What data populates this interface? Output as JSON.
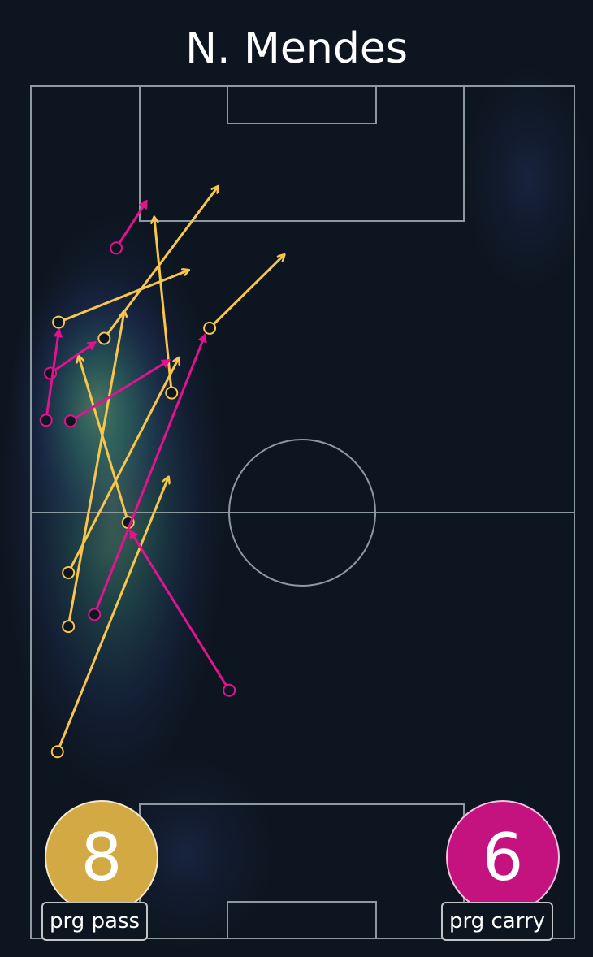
{
  "title": "N. Mendes",
  "colors": {
    "background": "#0d1620",
    "pitch_lines": "#8a9aa0",
    "pass": "#f7c64a",
    "carry": "#e3128f",
    "pass_badge": "#d3a944",
    "carry_badge": "#c4127f"
  },
  "badges": {
    "pass": {
      "value": "8",
      "label": "prg pass"
    },
    "carry": {
      "value": "6",
      "label": "prg carry"
    }
  },
  "chart_data": {
    "type": "scatter",
    "title": "N. Mendes",
    "description_units": "pitch coordinates 0-100 across width (left to right) and 0-100 along length (top goal to bottom goal)",
    "xlim": [
      0,
      100
    ],
    "ylim": [
      0,
      100
    ],
    "grid": false,
    "series": [
      {
        "name": "prg pass",
        "color": "#f7c64a",
        "arrows": [
          {
            "start": [
              5.1,
              27.7
            ],
            "end": [
              29.0,
              21.6
            ]
          },
          {
            "start": [
              13.5,
              29.6
            ],
            "end": [
              34.4,
              11.8
            ]
          },
          {
            "start": [
              32.9,
              28.4
            ],
            "end": [
              46.6,
              19.8
            ]
          },
          {
            "start": [
              25.9,
              36.0
            ],
            "end": [
              22.7,
              15.4
            ]
          },
          {
            "start": [
              6.9,
              57.1
            ],
            "end": [
              27.2,
              31.9
            ]
          },
          {
            "start": [
              6.9,
              63.4
            ],
            "end": [
              17.2,
              26.4
            ]
          },
          {
            "start": [
              17.9,
              51.2
            ],
            "end": [
              8.8,
              31.7
            ]
          },
          {
            "start": [
              4.9,
              78.1
            ],
            "end": [
              25.3,
              45.9
            ]
          }
        ]
      },
      {
        "name": "prg carry",
        "color": "#e3128f",
        "arrows": [
          {
            "start": [
              15.7,
              19.0
            ],
            "end": [
              21.4,
              13.4
            ]
          },
          {
            "start": [
              3.6,
              33.7
            ],
            "end": [
              12.0,
              30.0
            ]
          },
          {
            "start": [
              2.8,
              39.2
            ],
            "end": [
              5.2,
              28.5
            ]
          },
          {
            "start": [
              7.3,
              39.3
            ],
            "end": [
              25.6,
              32.1
            ]
          },
          {
            "start": [
              11.7,
              62.0
            ],
            "end": [
              32.1,
              29.1
            ]
          },
          {
            "start": [
              36.5,
              70.9
            ],
            "end": [
              18.2,
              52.1
            ]
          }
        ]
      }
    ]
  }
}
